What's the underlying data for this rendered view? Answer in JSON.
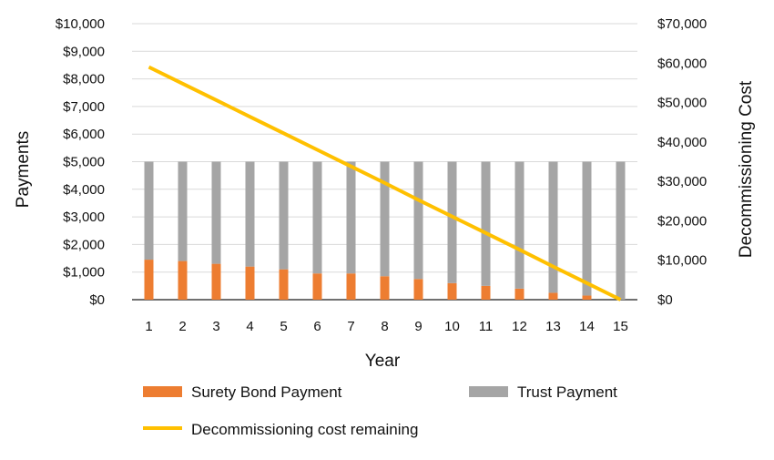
{
  "chart_data": {
    "type": "bar",
    "categories": [
      "1",
      "2",
      "3",
      "4",
      "5",
      "6",
      "7",
      "8",
      "9",
      "10",
      "11",
      "12",
      "13",
      "14",
      "15"
    ],
    "stacked": true,
    "series": [
      {
        "name": "Surety Bond Payment",
        "type": "bar",
        "axis": "left",
        "values": [
          1450,
          1400,
          1300,
          1200,
          1100,
          950,
          950,
          850,
          750,
          600,
          500,
          400,
          250,
          150,
          0
        ],
        "color": "#ED7D31"
      },
      {
        "name": "Trust Payment",
        "type": "bar",
        "axis": "left",
        "values": [
          3550,
          3600,
          3700,
          3800,
          3900,
          4050,
          4050,
          4150,
          4250,
          4400,
          4500,
          4600,
          4750,
          4850,
          5000
        ],
        "color": "#A5A5A5"
      },
      {
        "name": "Decommissioning cost remaining",
        "type": "line",
        "axis": "right",
        "values": [
          59000,
          54800,
          50600,
          46400,
          42200,
          38000,
          33800,
          29600,
          25300,
          21100,
          16900,
          12700,
          8400,
          4200,
          0
        ],
        "color": "#FFC000"
      }
    ],
    "xlabel": "Year",
    "ylabel": "Payments",
    "y2label": "Decommissioning Cost",
    "ylim": [
      0,
      10000
    ],
    "y2lim": [
      0,
      70000
    ],
    "yticks": [
      "$0",
      "$1,000",
      "$2,000",
      "$3,000",
      "$4,000",
      "$5,000",
      "$6,000",
      "$7,000",
      "$8,000",
      "$9,000",
      "$10,000"
    ],
    "y2ticks": [
      "$0",
      "$10,000",
      "$20,000",
      "$30,000",
      "$40,000",
      "$50,000",
      "$60,000",
      "$70,000"
    ],
    "grid": true,
    "legend_position": "bottom"
  }
}
